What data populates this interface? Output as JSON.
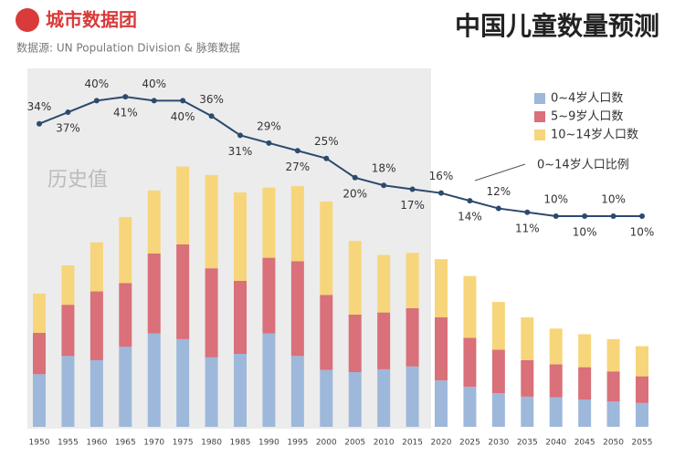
{
  "chart_data": {
    "type": "bar",
    "brand": "城市数据团",
    "source": "数据源: UN Population Division & 脉策数据",
    "title": "中国儿童数量预测",
    "annotation": "历史值",
    "categories": [
      "1950",
      "1955",
      "1960",
      "1965",
      "1970",
      "1975",
      "1980",
      "1985",
      "1990",
      "1995",
      "2000",
      "2005",
      "2010",
      "2015",
      "2020",
      "2025",
      "2030",
      "2035",
      "2040",
      "2045",
      "2050",
      "2055"
    ],
    "series": [
      {
        "name": "0~4岁人口数",
        "color": "#9db8da",
        "values": [
          75,
          101,
          95,
          114,
          133,
          125,
          99,
          104,
          133,
          101,
          81,
          78,
          82,
          86,
          66,
          57,
          48,
          43,
          42,
          39,
          36,
          34
        ]
      },
      {
        "name": "5~9岁人口数",
        "color": "#d9707a",
        "values": [
          59,
          73,
          98,
          91,
          114,
          135,
          127,
          104,
          108,
          135,
          107,
          82,
          81,
          83,
          90,
          70,
          62,
          52,
          47,
          46,
          43,
          38
        ]
      },
      {
        "name": "10~14岁人口数",
        "color": "#f7d57a",
        "values": [
          56,
          56,
          70,
          94,
          90,
          111,
          133,
          126,
          100,
          107,
          133,
          105,
          82,
          79,
          83,
          88,
          68,
          61,
          51,
          47,
          46,
          43
        ]
      }
    ],
    "line": {
      "name": "0~14岁人口比例",
      "color": "#2d4a6e",
      "values": [
        34,
        37,
        40,
        41,
        40,
        40,
        36,
        31,
        29,
        27,
        25,
        20,
        18,
        17,
        16,
        14,
        12,
        11,
        10,
        10,
        10,
        10
      ],
      "value_labels": [
        "34%",
        "37%",
        "40%",
        "41%",
        "40%",
        "40%",
        "36%",
        "31%",
        "29%",
        "27%",
        "25%",
        "20%",
        "18%",
        "17%",
        "16%",
        "14%",
        "12%",
        "11%",
        "10%",
        "10%",
        "10%",
        "10%"
      ]
    }
  }
}
